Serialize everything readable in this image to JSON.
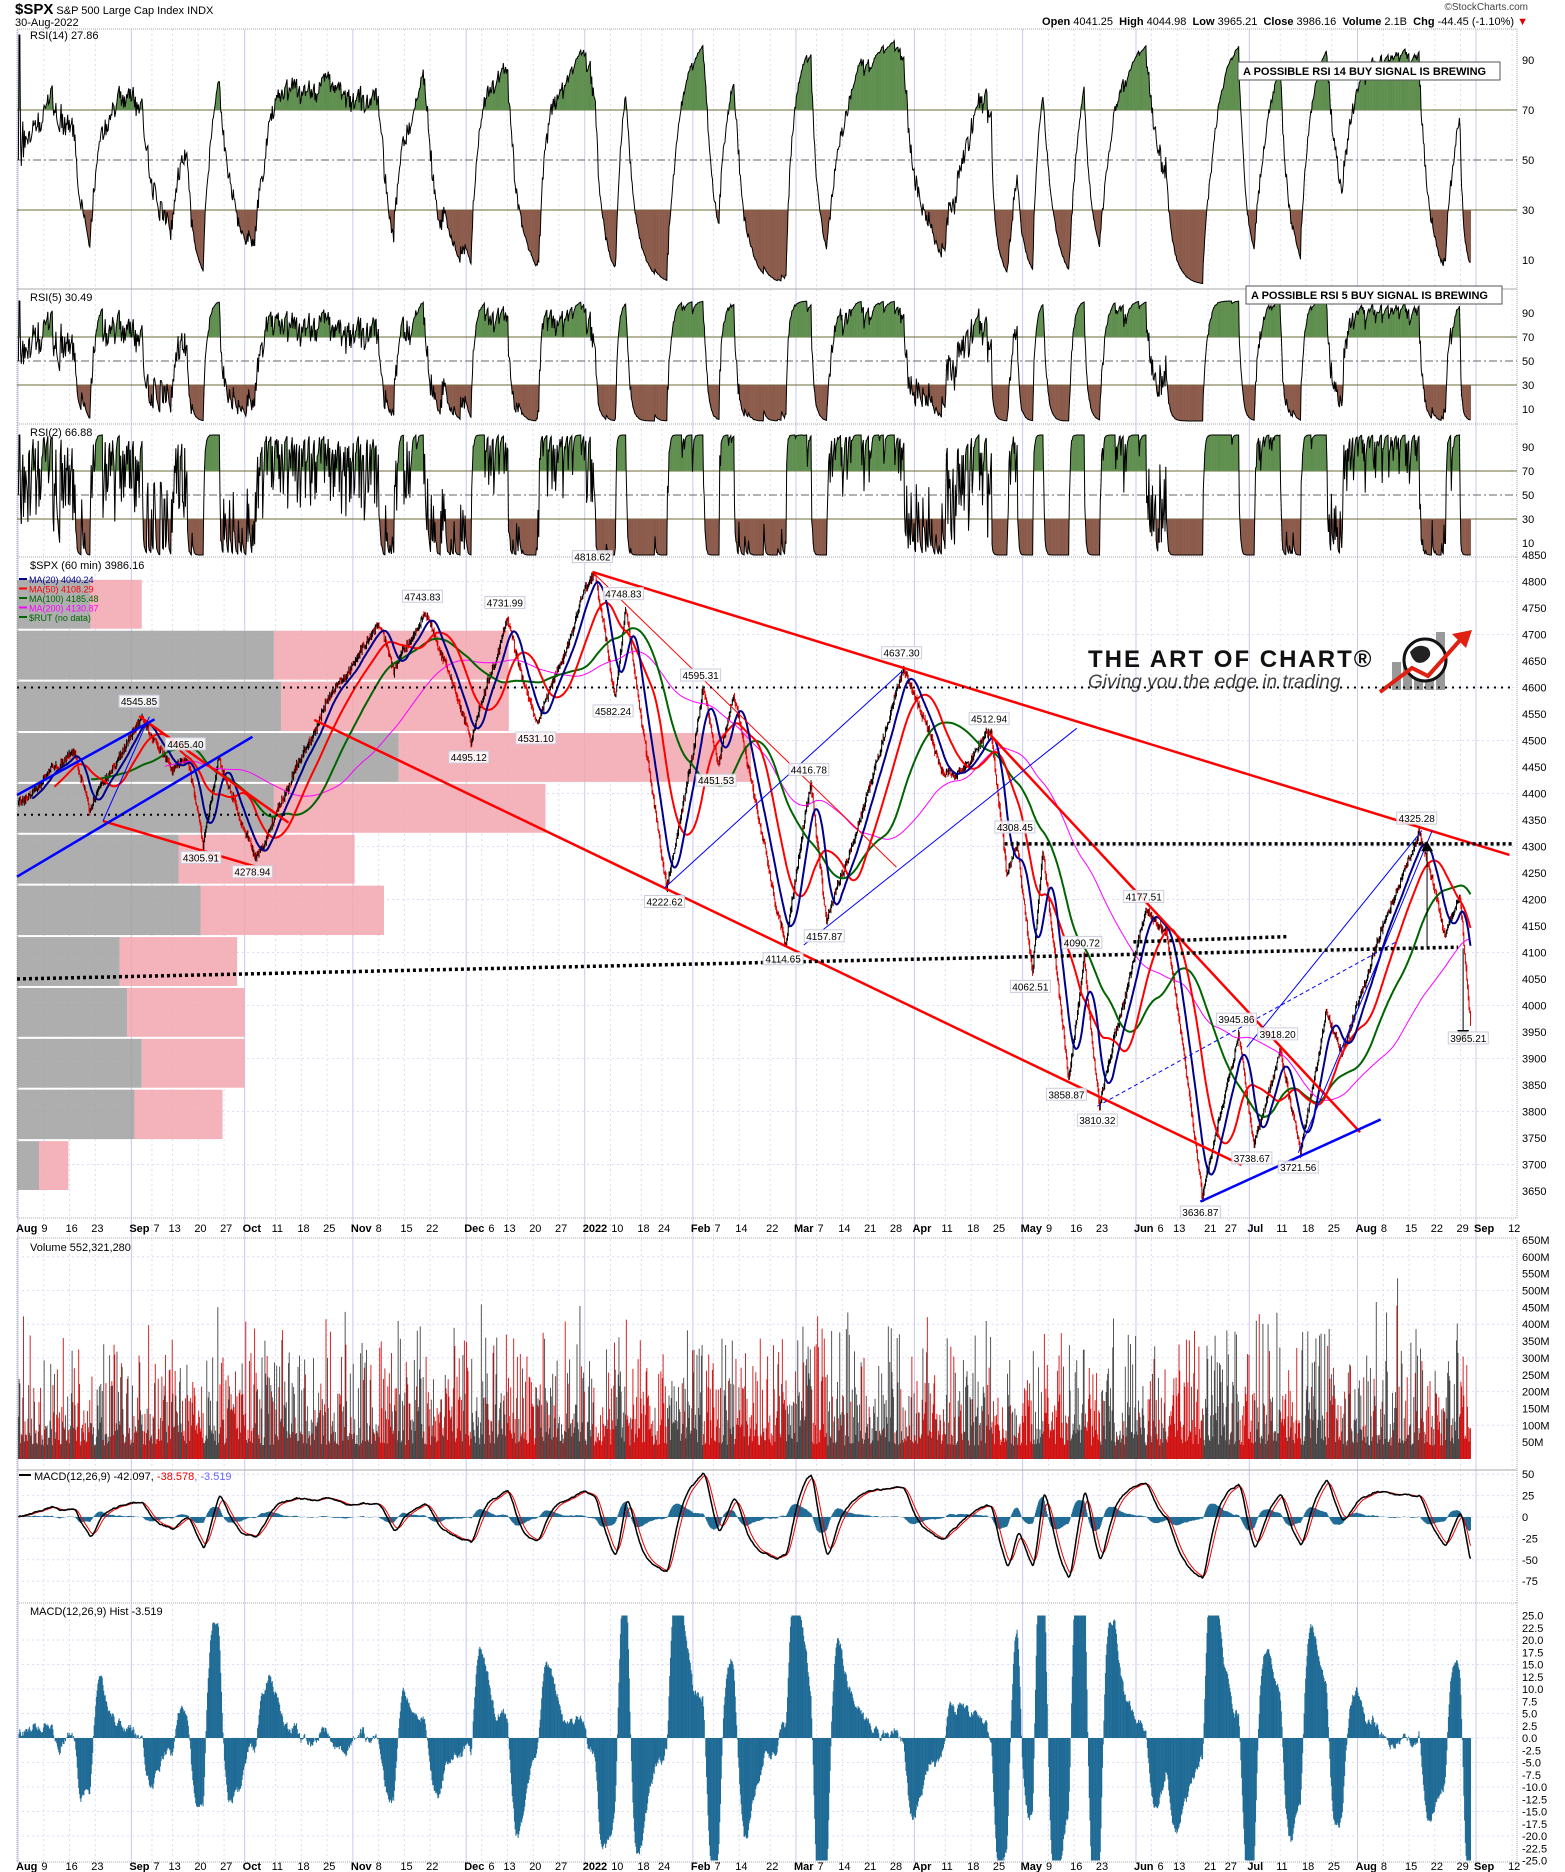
{
  "header": {
    "symbol": "$SPX",
    "name": "S&P 500 Large Cap Index",
    "exchange": "INDX",
    "date": "30-Aug-2022",
    "copyright": "©StockCharts.com",
    "open_label": "Open",
    "open": "4041.25",
    "high_label": "High",
    "high": "4044.98",
    "low_label": "Low",
    "low": "3965.21",
    "close_label": "Close",
    "close": "3986.16",
    "volume_label": "Volume",
    "volume": "2.1B",
    "chg_label": "Chg",
    "chg": "-44.45 (-1.10%)",
    "chg_direction": "down"
  },
  "panels": {
    "rsi14": {
      "label": "RSI(14) 27.86",
      "note": "A POSSIBLE RSI 14 BUY SIGNAL IS BREWING"
    },
    "rsi5": {
      "label": "RSI(5) 30.49",
      "note": "A POSSIBLE RSI 5 BUY SIGNAL IS BREWING"
    },
    "rsi2": {
      "label": "RSI(2) 66.88"
    },
    "price": {
      "label": "$SPX (60 min) 3986.16",
      "legend": [
        {
          "text": "MA(20) 4040.24",
          "color": "#00008b"
        },
        {
          "text": "MA(50) 4108.29",
          "color": "#ff0000"
        },
        {
          "text": "MA(100) 4185.48",
          "color": "#006400"
        },
        {
          "text": "MA(200) 4130.87",
          "color": "#ff00ff"
        },
        {
          "text": "$RUT (no data)",
          "color": "#006400"
        }
      ]
    },
    "volume": {
      "label": "Volume 552,321,280"
    },
    "macd": {
      "label": "MACD(12,26,9)",
      "macd": "-42.097",
      "signal": "-38.578",
      "hist": "-3.519"
    },
    "hist": {
      "label": "MACD(12,26,9) Hist -3.519"
    }
  },
  "logo": {
    "title": "THE ART OF CHART®",
    "tagline": "Giving you the edge in trading"
  },
  "chart_data": {
    "type": "bar",
    "interval": "60 min",
    "colors": {
      "up": "#000000",
      "down": "#dd0000",
      "ma20": "#00008b",
      "ma50": "#ff0000",
      "ma100": "#006400",
      "ma200": "#ff00ff",
      "overbought_fill": "#5f8f4f",
      "oversold_fill": "#8b5a4a",
      "hist": "#1f6b96",
      "grid": "#d8d8f0"
    },
    "x_ticks": [
      {
        "label": "Aug",
        "date": "2021-08-02",
        "bold": true
      },
      {
        "label": "9",
        "date": "2021-08-09"
      },
      {
        "label": "16",
        "date": "2021-08-16"
      },
      {
        "label": "23",
        "date": "2021-08-23"
      },
      {
        "label": "Sep",
        "date": "2021-09-01",
        "bold": true
      },
      {
        "label": "7",
        "date": "2021-09-07"
      },
      {
        "label": "13",
        "date": "2021-09-13"
      },
      {
        "label": "20",
        "date": "2021-09-20"
      },
      {
        "label": "27",
        "date": "2021-09-27"
      },
      {
        "label": "Oct",
        "date": "2021-10-01",
        "bold": true
      },
      {
        "label": "11",
        "date": "2021-10-11"
      },
      {
        "label": "18",
        "date": "2021-10-18"
      },
      {
        "label": "25",
        "date": "2021-10-25"
      },
      {
        "label": "Nov",
        "date": "2021-11-01",
        "bold": true
      },
      {
        "label": "8",
        "date": "2021-11-08"
      },
      {
        "label": "15",
        "date": "2021-11-15"
      },
      {
        "label": "22",
        "date": "2021-11-22"
      },
      {
        "label": "Dec",
        "date": "2021-12-01",
        "bold": true
      },
      {
        "label": "6",
        "date": "2021-12-06"
      },
      {
        "label": "13",
        "date": "2021-12-13"
      },
      {
        "label": "20",
        "date": "2021-12-20"
      },
      {
        "label": "27",
        "date": "2021-12-27"
      },
      {
        "label": "2022",
        "date": "2022-01-03",
        "bold": true
      },
      {
        "label": "10",
        "date": "2022-01-10"
      },
      {
        "label": "18",
        "date": "2022-01-18"
      },
      {
        "label": "24",
        "date": "2022-01-24"
      },
      {
        "label": "Feb",
        "date": "2022-02-01",
        "bold": true
      },
      {
        "label": "7",
        "date": "2022-02-07"
      },
      {
        "label": "14",
        "date": "2022-02-14"
      },
      {
        "label": "22",
        "date": "2022-02-22"
      },
      {
        "label": "Mar",
        "date": "2022-03-01",
        "bold": true
      },
      {
        "label": "7",
        "date": "2022-03-07"
      },
      {
        "label": "14",
        "date": "2022-03-14"
      },
      {
        "label": "21",
        "date": "2022-03-21"
      },
      {
        "label": "28",
        "date": "2022-03-28"
      },
      {
        "label": "Apr",
        "date": "2022-04-01",
        "bold": true
      },
      {
        "label": "11",
        "date": "2022-04-11"
      },
      {
        "label": "18",
        "date": "2022-04-18"
      },
      {
        "label": "25",
        "date": "2022-04-25"
      },
      {
        "label": "May",
        "date": "2022-05-02",
        "bold": true
      },
      {
        "label": "9",
        "date": "2022-05-09"
      },
      {
        "label": "16",
        "date": "2022-05-16"
      },
      {
        "label": "23",
        "date": "2022-05-23"
      },
      {
        "label": "Jun",
        "date": "2022-06-01",
        "bold": true
      },
      {
        "label": "6",
        "date": "2022-06-06"
      },
      {
        "label": "13",
        "date": "2022-06-13"
      },
      {
        "label": "21",
        "date": "2022-06-21"
      },
      {
        "label": "27",
        "date": "2022-06-27"
      },
      {
        "label": "Jul",
        "date": "2022-07-01",
        "bold": true
      },
      {
        "label": "11",
        "date": "2022-07-11"
      },
      {
        "label": "18",
        "date": "2022-07-18"
      },
      {
        "label": "25",
        "date": "2022-07-25"
      },
      {
        "label": "Aug",
        "date": "2022-08-01",
        "bold": true
      },
      {
        "label": "8",
        "date": "2022-08-08"
      },
      {
        "label": "15",
        "date": "2022-08-15"
      },
      {
        "label": "22",
        "date": "2022-08-22"
      },
      {
        "label": "29",
        "date": "2022-08-29"
      },
      {
        "label": "Sep",
        "date": "2022-09-01",
        "bold": true
      },
      {
        "label": "12",
        "date": "2022-09-12"
      }
    ],
    "price_axis": {
      "ylim": [
        3625,
        4850
      ],
      "ticks": [
        3650,
        3700,
        3750,
        3800,
        3850,
        3900,
        3950,
        4000,
        4050,
        4100,
        4150,
        4200,
        4250,
        4300,
        4350,
        4400,
        4450,
        4500,
        4550,
        4600,
        4650,
        4700,
        4750,
        4800,
        4850
      ]
    },
    "rsi_ticks": [
      10,
      30,
      50,
      70,
      90
    ],
    "volume_ticks": [
      "50M",
      "100M",
      "150M",
      "200M",
      "250M",
      "300M",
      "350M",
      "400M",
      "450M",
      "500M",
      "550M",
      "600M",
      "650M"
    ],
    "macd_ticks": [
      50,
      25,
      0,
      -25,
      -50,
      -75
    ],
    "hist_ticks": [
      "25.0",
      "22.5",
      "20.0",
      "17.5",
      "15.0",
      "12.5",
      "10.0",
      "7.5",
      "5.0",
      "2.5",
      "0.0",
      "-2.5",
      "-5.0",
      "-7.5",
      "-10.0",
      "-12.5",
      "-15.0",
      "-17.5",
      "-20.0",
      "-22.5",
      "-25.0"
    ],
    "pivots": [
      {
        "date": "2021-08-02",
        "value": 4385
      },
      {
        "date": "2021-08-16",
        "value": 4480
      },
      {
        "date": "2021-08-19",
        "value": 4367
      },
      {
        "date": "2021-09-02",
        "value": 4545.85,
        "label": "4545.85",
        "kind": "high"
      },
      {
        "date": "2021-09-10",
        "value": 4440
      },
      {
        "date": "2021-09-15",
        "value": 4465.4,
        "label": "4465.40",
        "kind": "high"
      },
      {
        "date": "2021-09-20",
        "value": 4305.91,
        "label": "4305.91",
        "kind": "low"
      },
      {
        "date": "2021-09-23",
        "value": 4465
      },
      {
        "date": "2021-10-04",
        "value": 4278.94,
        "label": "4278.94",
        "kind": "low"
      },
      {
        "date": "2021-10-21",
        "value": 4550
      },
      {
        "date": "2021-11-05",
        "value": 4718
      },
      {
        "date": "2021-11-10",
        "value": 4630
      },
      {
        "date": "2021-11-18",
        "value": 4743.83,
        "label": "4743.83",
        "kind": "high"
      },
      {
        "date": "2021-11-26",
        "value": 4590
      },
      {
        "date": "2021-12-01",
        "value": 4495.12,
        "label": "4495.12",
        "kind": "low"
      },
      {
        "date": "2021-12-10",
        "value": 4731.99,
        "label": "4731.99",
        "kind": "high"
      },
      {
        "date": "2021-12-20",
        "value": 4531.1,
        "label": "4531.10",
        "kind": "low"
      },
      {
        "date": "2022-01-04",
        "value": 4818.62,
        "label": "4818.62",
        "kind": "high"
      },
      {
        "date": "2022-01-10",
        "value": 4582.24,
        "label": "4582.24",
        "kind": "low"
      },
      {
        "date": "2022-01-12",
        "value": 4748.83,
        "label": "4748.83",
        "kind": "high"
      },
      {
        "date": "2022-01-24",
        "value": 4222.62,
        "label": "4222.62",
        "kind": "low"
      },
      {
        "date": "2022-02-02",
        "value": 4595.31,
        "label": "4595.31",
        "kind": "high"
      },
      {
        "date": "2022-02-07",
        "value": 4451.53,
        "label": "4451.53",
        "kind": "low"
      },
      {
        "date": "2022-02-10",
        "value": 4588
      },
      {
        "date": "2022-02-24",
        "value": 4114.65,
        "label": "4114.65",
        "kind": "low"
      },
      {
        "date": "2022-03-03",
        "value": 4416.78,
        "label": "4416.78",
        "kind": "high"
      },
      {
        "date": "2022-03-08",
        "value": 4157.87,
        "label": "4157.87",
        "kind": "low"
      },
      {
        "date": "2022-03-29",
        "value": 4637.3,
        "label": "4637.30",
        "kind": "high"
      },
      {
        "date": "2022-04-07",
        "value": 4450
      },
      {
        "date": "2022-04-12",
        "value": 4430
      },
      {
        "date": "2022-04-21",
        "value": 4512.94,
        "label": "4512.94",
        "kind": "high"
      },
      {
        "date": "2022-04-26",
        "value": 4250
      },
      {
        "date": "2022-04-28",
        "value": 4308.45,
        "label": "4308.45",
        "kind": "high"
      },
      {
        "date": "2022-05-03",
        "value": 4062.51,
        "label": "4062.51",
        "kind": "low"
      },
      {
        "date": "2022-05-05",
        "value": 4290
      },
      {
        "date": "2022-05-12",
        "value": 3858.87,
        "label": "3858.87",
        "kind": "low"
      },
      {
        "date": "2022-05-17",
        "value": 4090.72,
        "label": "4090.72",
        "kind": "high"
      },
      {
        "date": "2022-05-20",
        "value": 3810.32,
        "label": "3810.32",
        "kind": "low"
      },
      {
        "date": "2022-06-02",
        "value": 4177.51,
        "label": "4177.51",
        "kind": "high"
      },
      {
        "date": "2022-06-08",
        "value": 4140
      },
      {
        "date": "2022-06-17",
        "value": 3636.87,
        "label": "3636.87",
        "kind": "low"
      },
      {
        "date": "2022-06-28",
        "value": 3945.86,
        "label": "3945.86",
        "kind": "high"
      },
      {
        "date": "2022-07-01",
        "value": 3738.67,
        "label": "3738.67",
        "kind": "low"
      },
      {
        "date": "2022-07-08",
        "value": 3918.2,
        "label": "3918.20",
        "kind": "high"
      },
      {
        "date": "2022-07-14",
        "value": 3721.56,
        "label": "3721.56",
        "kind": "low"
      },
      {
        "date": "2022-07-21",
        "value": 3990
      },
      {
        "date": "2022-07-26",
        "value": 3910
      },
      {
        "date": "2022-08-05",
        "value": 4150
      },
      {
        "date": "2022-08-16",
        "value": 4325.28,
        "label": "4325.28",
        "kind": "high"
      },
      {
        "date": "2022-08-23",
        "value": 4130
      },
      {
        "date": "2022-08-26",
        "value": 4203
      },
      {
        "date": "2022-08-30",
        "value": 3965.21,
        "label": "3965.21",
        "kind": "low"
      }
    ],
    "last_close": 3986.16,
    "volume_by_price": [
      {
        "price_low": 4709,
        "price_high": 4805,
        "up": 10,
        "down": 7
      },
      {
        "price_low": 4613,
        "price_high": 4709,
        "up": 35,
        "down": 32
      },
      {
        "price_low": 4516,
        "price_high": 4613,
        "up": 36,
        "down": 31
      },
      {
        "price_low": 4420,
        "price_high": 4516,
        "up": 52,
        "down": 48
      },
      {
        "price_low": 4324,
        "price_high": 4420,
        "up": 35,
        "down": 37
      },
      {
        "price_low": 4228,
        "price_high": 4324,
        "up": 22,
        "down": 24
      },
      {
        "price_low": 4131,
        "price_high": 4228,
        "up": 25,
        "down": 25
      },
      {
        "price_low": 4035,
        "price_high": 4131,
        "up": 14,
        "down": 16
      },
      {
        "price_low": 3939,
        "price_high": 4035,
        "up": 15,
        "down": 16
      },
      {
        "price_low": 3843,
        "price_high": 3939,
        "up": 17,
        "down": 14
      },
      {
        "price_low": 3746,
        "price_high": 3843,
        "up": 16,
        "down": 12
      },
      {
        "price_low": 3650,
        "price_high": 3746,
        "up": 3,
        "down": 4
      }
    ],
    "trendlines": [
      {
        "from": [
          "2022-01-04",
          4818
        ],
        "to": [
          "2022-09-09",
          4284
        ],
        "color": "#ff0000",
        "style": "thick"
      },
      {
        "from": [
          "2021-10-20",
          4539
        ],
        "to": [
          "2022-06-29",
          3699
        ],
        "color": "#ff0000",
        "style": "thick"
      },
      {
        "from": [
          "2022-01-04",
          4818
        ],
        "to": [
          "2022-03-28",
          4261
        ],
        "color": "#ff0000",
        "style": "thin"
      },
      {
        "from": [
          "2022-04-21",
          4513
        ],
        "to": [
          "2022-08-01",
          3761
        ],
        "color": "#ff0000",
        "style": "thick"
      },
      {
        "from": [
          "2021-08-24",
          4348
        ],
        "to": [
          "2021-10-05",
          4261
        ],
        "color": "#ff0000",
        "style": "thick"
      },
      {
        "from": [
          "2021-09-02",
          4546
        ],
        "to": [
          "2021-10-13",
          4345
        ],
        "color": "#ff0000",
        "style": "thick"
      },
      {
        "from": [
          "2021-07-28",
          4397
        ],
        "to": [
          "2021-09-07",
          4540
        ],
        "color": "#0000ff",
        "style": "thick"
      },
      {
        "from": [
          "2021-07-28",
          4243
        ],
        "to": [
          "2021-10-04",
          4507
        ],
        "color": "#0000ff",
        "style": "thick"
      },
      {
        "from": [
          "2021-08-24",
          4348
        ],
        "to": [
          "2021-09-06",
          4545
        ],
        "color": "#0000ff",
        "style": "thin"
      },
      {
        "from": [
          "2022-01-24",
          4222
        ],
        "to": [
          "2022-03-29",
          4630
        ],
        "color": "#0000ff",
        "style": "thin"
      },
      {
        "from": [
          "2022-03-02",
          4114
        ],
        "to": [
          "2022-05-16",
          4523
        ],
        "color": "#0000ff",
        "style": "thin"
      },
      {
        "from": [
          "2022-06-17",
          3630
        ],
        "to": [
          "2022-08-05",
          3785
        ],
        "color": "#0000ff",
        "style": "thick"
      },
      {
        "from": [
          "2022-06-30",
          3921
        ],
        "to": [
          "2022-08-17",
          4330
        ],
        "color": "#0000ff",
        "style": "thin"
      },
      {
        "from": [
          "2022-07-14",
          3722
        ],
        "to": [
          "2022-08-19",
          4330
        ],
        "color": "#0000ff",
        "style": "thin"
      },
      {
        "from": [
          "2022-05-20",
          3810
        ],
        "to": [
          "2022-08-10",
          4120
        ],
        "color": "#0000ff",
        "style": "dashed"
      },
      {
        "from": [
          "2021-07-28",
          4600
        ],
        "to": [
          "2022-09-12",
          4600
        ],
        "color": "#000000",
        "style": "dotted"
      },
      {
        "from": [
          "2021-07-28",
          4360
        ],
        "to": [
          "2021-10-13",
          4360
        ],
        "color": "#000000",
        "style": "dotted"
      },
      {
        "from": [
          "2021-07-28",
          4050
        ],
        "to": [
          "2022-08-26",
          4110
        ],
        "color": "#000000",
        "style": "dotted-thick"
      },
      {
        "from": [
          "2022-05-31",
          4120
        ],
        "to": [
          "2022-07-12",
          4130
        ],
        "color": "#000000",
        "style": "dotted-thick"
      },
      {
        "from": [
          "2022-04-26",
          4305
        ],
        "to": [
          "2022-09-12",
          4305
        ],
        "color": "#000000",
        "style": "dotted-thick"
      }
    ],
    "target_arrows": [
      {
        "date": "2022-08-18",
        "from": 4110,
        "to": 4310,
        "direction": "up"
      },
      {
        "date": "2022-08-29",
        "from": 4108,
        "to": 3935,
        "direction": "down"
      }
    ],
    "rsi_levels": [
      70,
      50,
      30
    ]
  }
}
